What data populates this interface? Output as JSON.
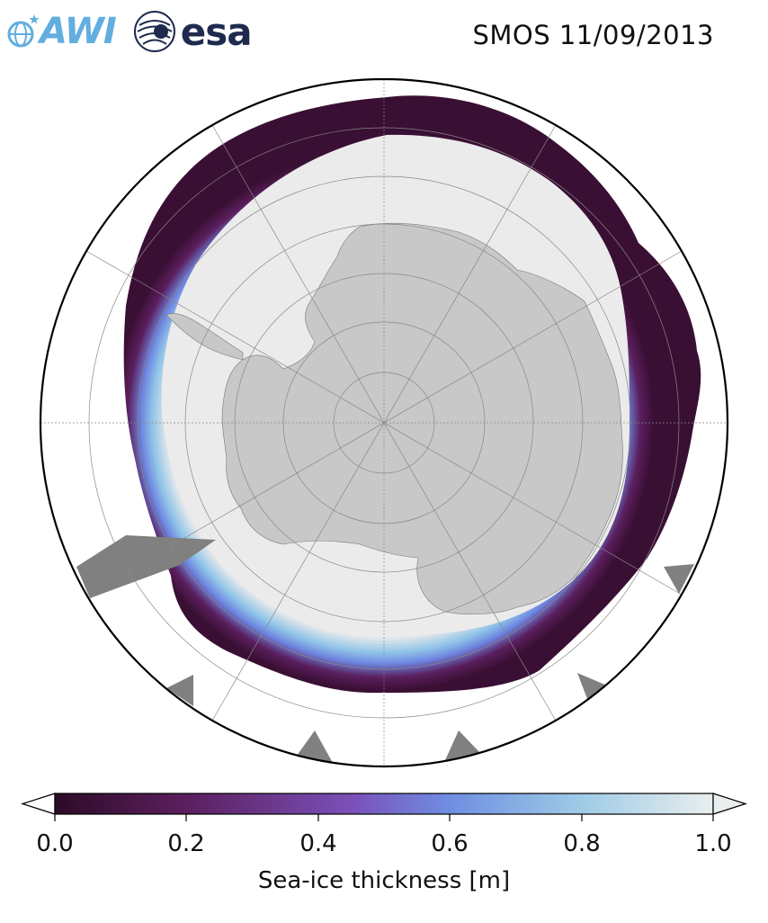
{
  "header": {
    "title": "SMOS 11/09/2013",
    "logos": [
      {
        "name": "AWI",
        "text": "AWI",
        "color": "#62aee0"
      },
      {
        "name": "esa",
        "text": "esa",
        "color": "#1e2a4e"
      }
    ]
  },
  "map": {
    "projection": "south-polar-stereographic",
    "colors": {
      "land": "#c8c8c8",
      "ice_interior": "#ebebeb",
      "no_data": "#808080",
      "ocean": "#ffffff",
      "graticule": "#888888"
    }
  },
  "colorbar": {
    "label": "Sea-ice thickness [m]",
    "ticks": [
      "0.0",
      "0.2",
      "0.4",
      "0.6",
      "0.8",
      "1.0"
    ],
    "min": 0.0,
    "max": 1.0,
    "extend": "both",
    "colormap": [
      "#2d0b27",
      "#5b1f5e",
      "#7a50b8",
      "#6f8ee2",
      "#9fcbe6",
      "#e9eeee"
    ]
  }
}
